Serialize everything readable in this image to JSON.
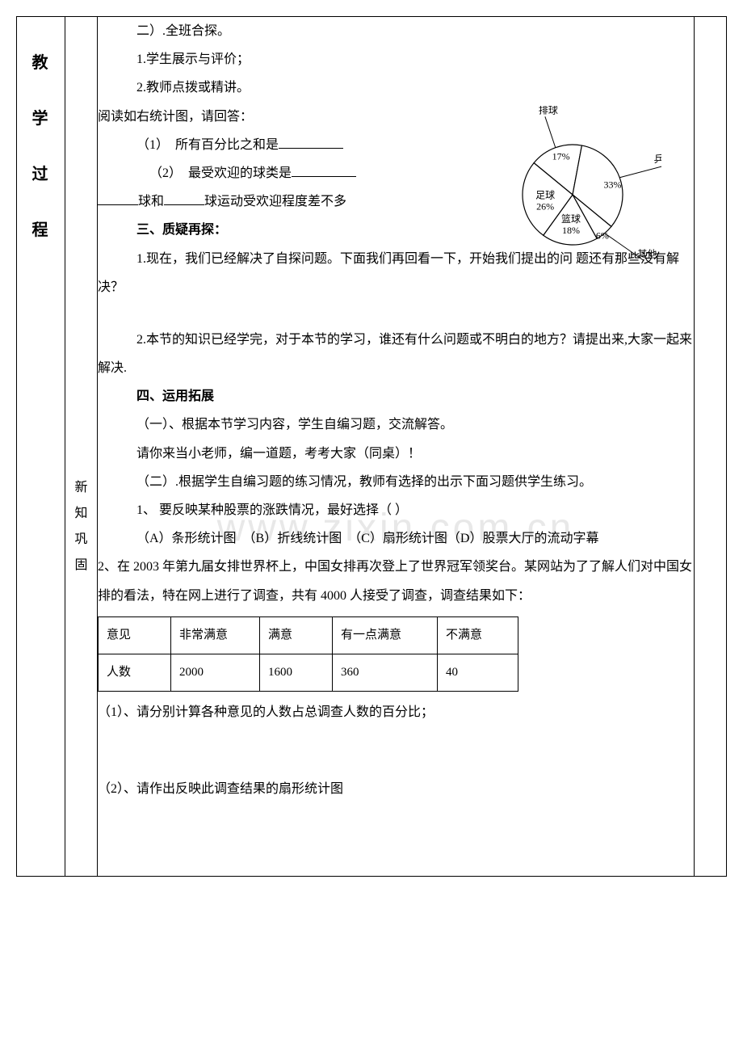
{
  "leftCol": {
    "chars": [
      "教",
      "学",
      "过",
      "程"
    ]
  },
  "subCol": {
    "chars": [
      "新",
      "知",
      "巩",
      "固"
    ]
  },
  "section2": {
    "heading": "二）.全班合探。",
    "line1": "1.学生展示与评价；",
    "line2": "2.教师点拨或精讲。",
    "readPrompt": "阅读如右统计图，请回答：",
    "q1prefix": "（1）　所有百分比之和是",
    "q2prefix": "（2）　最受欢迎的球类是",
    "q3mid1": "球和",
    "q3mid2": "球运动受欢迎程度差不多"
  },
  "section3": {
    "heading": "三、质疑再探：",
    "line1": "1.现在，我们已经解决了自探问题。下面我们再回看一下，开始我们提出的问 题还有那些没有解决？",
    "line2": "2.本节的知识已经学完，对于本节的学习，谁还有什么问题或不明白的地方？请提出来,大家一起来解决."
  },
  "section4": {
    "heading": "四、运用拓展",
    "sub1": "（一）、根据本节学习内容，学生自编习题，交流解答。",
    "line1": "请你来当小老师，编一道题，考考大家（同桌）！",
    "sub2": "（二）.根据学生自编习题的练习情况，教师有选择的出示下面习题供学生练习。",
    "q1": "1、 要反映某种股票的涨跌情况，最好选择（       ）",
    "q1opts": "（A）条形统计图　（B）折线统计图　（C）扇形统计图（D）股票大厅的流动字幕",
    "q2": "2、在 2003 年第九届女排世界杯上，中国女排再次登上了世界冠军领奖台。某网站为了了解人们对中国女排的看法，特在网上进行了调查，共有 4000 人接受了调查，调查结果如下：",
    "q2a": "（1）、请分别计算各种意见的人数占总调查人数的百分比；",
    "q2b": "（2）、请作出反映此调查结果的扇形统计图"
  },
  "survey": {
    "headers": [
      "意见",
      "非常满意",
      "满意",
      "有一点满意",
      "不满意"
    ],
    "row": [
      "人数",
      "2000",
      "1600",
      "360",
      "40"
    ]
  },
  "pie": {
    "title_fontsize": 13,
    "slices": [
      {
        "label": "排球",
        "pct": "17%",
        "value": 17
      },
      {
        "label": "乒乓球",
        "pct": "33%",
        "value": 33
      },
      {
        "label": "其他",
        "pct": "6%",
        "value": 6
      },
      {
        "label": "篮球",
        "pct": "18%",
        "value": 18
      },
      {
        "label": "足球",
        "pct": "26%",
        "value": 26
      }
    ],
    "stroke": "#000000",
    "fill": "#ffffff",
    "label_fontsize": 12
  },
  "watermark": "www.zixin.com.cn"
}
